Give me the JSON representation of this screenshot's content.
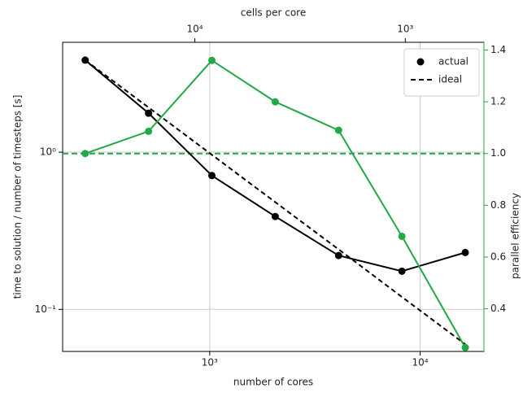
{
  "chart_data": {
    "type": "line",
    "xlabel": "number of cores",
    "ylabel": "time to solution / number of timesteps [s]",
    "y2label": "parallel efficiency",
    "x2label": "cells per core",
    "xscale": "log",
    "yscale": "log",
    "x2scale": "log",
    "x": [
      256,
      512,
      1024,
      2048,
      4096,
      8192,
      16384
    ],
    "series": [
      {
        "name": "actual",
        "color": "#000000",
        "style": "solid",
        "marker": true,
        "values": [
          3.85,
          1.77,
          0.71,
          0.39,
          0.22,
          0.175,
          0.23
        ]
      },
      {
        "name": "ideal",
        "color": "#000000",
        "style": "dashed",
        "marker": false,
        "values": [
          3.85,
          1.925,
          0.9625,
          0.481,
          0.241,
          0.12,
          0.06
        ]
      },
      {
        "color": "#22a846",
        "style": "solid",
        "marker": true,
        "axis": "y2",
        "values": [
          1.0,
          1.086,
          1.36,
          1.2,
          1.09,
          0.68,
          0.25
        ]
      }
    ],
    "reference_lines": [
      {
        "y": 1.0,
        "axis": "y2",
        "color": "#22a846",
        "style": "dashed"
      }
    ],
    "xlim": [
      200,
      20100
    ],
    "xticks": [
      {
        "value": 1000,
        "label": "10³"
      },
      {
        "value": 10000,
        "label": "10⁴"
      }
    ],
    "x2lim": [
      42500,
      423
    ],
    "x2ticks": [
      {
        "value": 10000,
        "label": "10⁴"
      },
      {
        "value": 1000,
        "label": "10³"
      }
    ],
    "ylim": [
      0.054,
      5.0
    ],
    "yticks": [
      {
        "value": 1,
        "label": "10⁰"
      },
      {
        "value": 0.1,
        "label": "10⁻¹"
      }
    ],
    "y2lim": [
      0.235,
      1.43
    ],
    "y2ticks": [
      0.4,
      0.6,
      0.8,
      {
        "value": 1.0,
        "label": "1.0"
      },
      1.2,
      1.4
    ],
    "y2color": "#22a846",
    "grid": true,
    "legend": "upper right"
  }
}
